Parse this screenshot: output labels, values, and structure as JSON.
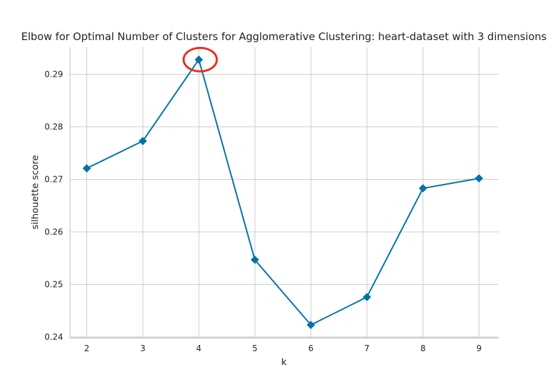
{
  "chart_data": {
    "type": "line",
    "title": "Elbow for Optimal Number of Clusters for Agglomerative Clustering: heart-dataset with 3 dimensions",
    "xlabel": "k",
    "ylabel": "silhouette score",
    "x": [
      2,
      3,
      4,
      5,
      6,
      7,
      8,
      9
    ],
    "series": [
      {
        "values": [
          0.2721,
          0.2773,
          0.2928,
          0.2547,
          0.2423,
          0.2476,
          0.2683,
          0.2702
        ],
        "color": "#0173a6",
        "marker": "diamond"
      }
    ],
    "xlim": [
      1.7,
      9.35
    ],
    "ylim": [
      0.2398,
      0.2952
    ],
    "xticks": [
      2,
      3,
      4,
      5,
      6,
      7,
      8,
      9
    ],
    "yticks": [
      0.24,
      0.25,
      0.26,
      0.27,
      0.28,
      0.29
    ],
    "ytick_labels": [
      "0.24",
      "0.25",
      "0.26",
      "0.27",
      "0.28",
      "0.29"
    ],
    "grid": true,
    "highlight": {
      "x": 4,
      "y": 0.2928,
      "color": "#e8311a",
      "shape": "ellipse"
    }
  }
}
